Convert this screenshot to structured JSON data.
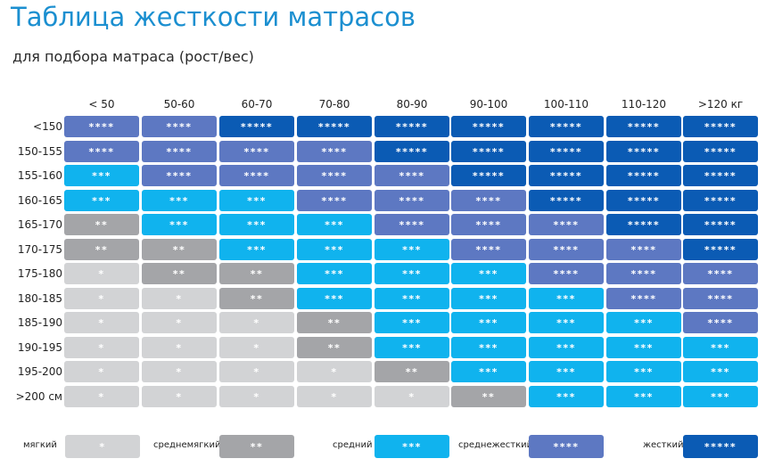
{
  "title": "Таблица жесткости матрасов",
  "subtitle": "для подбора матраса (рост/вес)",
  "chart_data": {
    "type": "table",
    "columns": [
      "< 50",
      "50-60",
      "60-70",
      "70-80",
      "80-90",
      "90-100",
      "100-110",
      "110-120",
      ">120 кг"
    ],
    "rows": [
      "<150",
      "150-155",
      "155-160",
      "160-165",
      "165-170",
      "170-175",
      "175-180",
      "180-185",
      "185-190",
      "190-195",
      "195-200",
      ">200 см"
    ],
    "levels": [
      [
        4,
        4,
        5,
        5,
        5,
        5,
        5,
        5,
        5
      ],
      [
        4,
        4,
        4,
        4,
        5,
        5,
        5,
        5,
        5
      ],
      [
        3,
        4,
        4,
        4,
        4,
        5,
        5,
        5,
        5
      ],
      [
        3,
        3,
        3,
        4,
        4,
        4,
        5,
        5,
        5
      ],
      [
        2,
        3,
        3,
        3,
        4,
        4,
        4,
        5,
        5
      ],
      [
        2,
        2,
        3,
        3,
        3,
        4,
        4,
        4,
        5
      ],
      [
        1,
        2,
        2,
        3,
        3,
        3,
        4,
        4,
        4
      ],
      [
        1,
        1,
        2,
        3,
        3,
        3,
        3,
        4,
        4
      ],
      [
        1,
        1,
        1,
        2,
        3,
        3,
        3,
        3,
        4
      ],
      [
        1,
        1,
        1,
        2,
        3,
        3,
        3,
        3,
        3
      ],
      [
        1,
        1,
        1,
        1,
        2,
        3,
        3,
        3,
        3
      ],
      [
        1,
        1,
        1,
        1,
        1,
        2,
        3,
        3,
        3
      ]
    ],
    "symbols": {
      "1": "*",
      "2": "**",
      "3": "***",
      "4": "****",
      "5": "*****"
    },
    "colors": {
      "1": "#d2d3d5",
      "2": "#a4a5a8",
      "3": "#10b3ee",
      "4": "#5d78c2",
      "5": "#0b5bb4"
    },
    "title_color": "#1b8fd0",
    "legend": [
      {
        "level": 1,
        "label": "мягкий",
        "symbol": "*"
      },
      {
        "level": 2,
        "label": "среднемягкий",
        "symbol": "**"
      },
      {
        "level": 3,
        "label": "средний",
        "symbol": "***"
      },
      {
        "level": 4,
        "label": "среднежесткий",
        "symbol": "****"
      },
      {
        "level": 5,
        "label": "жесткий",
        "symbol": "*****"
      }
    ]
  }
}
